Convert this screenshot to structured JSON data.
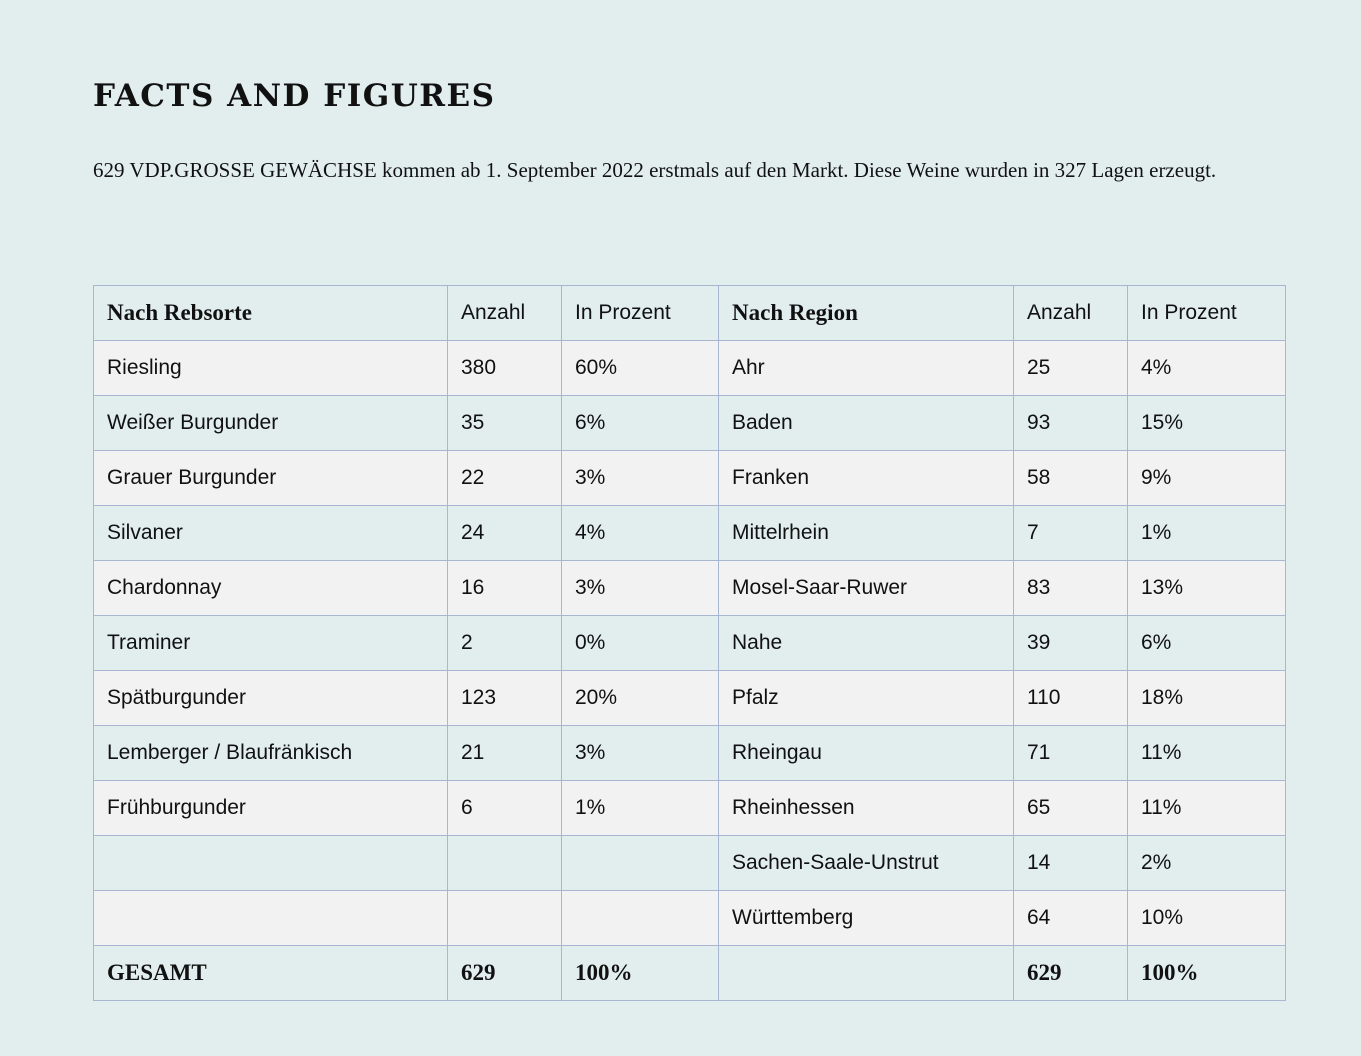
{
  "page": {
    "title": "FACTS AND FIGURES",
    "intro": "629 VDP.GROSSE GEWÄCHSE kommen ab 1. September 2022 erstmals auf den Markt. Diese Weine wurden in 327 Lagen erzeugt."
  },
  "table": {
    "header": {
      "rebsorte": "Nach Rebsorte",
      "anzahl_1": "Anzahl",
      "prozent_1": "In Prozent",
      "region": "Nach Region",
      "anzahl_2": "Anzahl",
      "prozent_2": "In Prozent"
    },
    "rows": [
      {
        "rebsorte": "Riesling",
        "anzahl_1": "380",
        "prozent_1": "60%",
        "region": "Ahr",
        "anzahl_2": "25",
        "prozent_2": "4%"
      },
      {
        "rebsorte": "Weißer Burgunder",
        "anzahl_1": "35",
        "prozent_1": "6%",
        "region": "Baden",
        "anzahl_2": "93",
        "prozent_2": "15%"
      },
      {
        "rebsorte": "Grauer Burgunder",
        "anzahl_1": "22",
        "prozent_1": "3%",
        "region": "Franken",
        "anzahl_2": "58",
        "prozent_2": "9%"
      },
      {
        "rebsorte": "Silvaner",
        "anzahl_1": "24",
        "prozent_1": "4%",
        "region": "Mittelrhein",
        "anzahl_2": "7",
        "prozent_2": "1%"
      },
      {
        "rebsorte": "Chardonnay",
        "anzahl_1": "16",
        "prozent_1": "3%",
        "region": "Mosel-Saar-Ruwer",
        "anzahl_2": "83",
        "prozent_2": "13%"
      },
      {
        "rebsorte": "Traminer",
        "anzahl_1": "2",
        "prozent_1": "0%",
        "region": "Nahe",
        "anzahl_2": "39",
        "prozent_2": "6%"
      },
      {
        "rebsorte": "Spätburgunder",
        "anzahl_1": "123",
        "prozent_1": "20%",
        "region": "Pfalz",
        "anzahl_2": "110",
        "prozent_2": "18%"
      },
      {
        "rebsorte": "Lemberger / Blaufränkisch",
        "anzahl_1": "21",
        "prozent_1": "3%",
        "region": "Rheingau",
        "anzahl_2": "71",
        "prozent_2": "11%"
      },
      {
        "rebsorte": "Frühburgunder",
        "anzahl_1": "6",
        "prozent_1": "1%",
        "region": "Rheinhessen",
        "anzahl_2": "65",
        "prozent_2": "11%"
      },
      {
        "rebsorte": "",
        "anzahl_1": "",
        "prozent_1": "",
        "region": "Sachen-Saale-Unstrut",
        "anzahl_2": "14",
        "prozent_2": "2%"
      },
      {
        "rebsorte": "",
        "anzahl_1": "",
        "prozent_1": "",
        "region": "Württemberg",
        "anzahl_2": "64",
        "prozent_2": "10%"
      }
    ],
    "total": {
      "rebsorte": "GESAMT",
      "anzahl_1": "629",
      "prozent_1": "100%",
      "region": "",
      "anzahl_2": "629",
      "prozent_2": "100%"
    }
  },
  "colors": {
    "background": "#e2eeee",
    "row_light": "#f2f2f2",
    "border": "#a8b6d2",
    "text": "#111111"
  }
}
